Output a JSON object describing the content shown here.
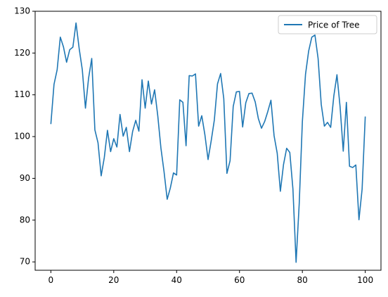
{
  "chart_data": {
    "type": "line",
    "title": "",
    "xlabel": "",
    "ylabel": "",
    "xlim": [
      -5,
      105
    ],
    "ylim": [
      68,
      130
    ],
    "xticks": [
      0,
      20,
      40,
      60,
      80,
      100
    ],
    "yticks": [
      70,
      80,
      90,
      100,
      110,
      120,
      130
    ],
    "grid": false,
    "legend": {
      "placement": "top-right"
    },
    "series": [
      {
        "name": "Price of Tree",
        "color": "#1f77b4",
        "x": [
          0,
          1,
          2,
          3,
          4,
          5,
          6,
          7,
          8,
          9,
          10,
          11,
          12,
          13,
          14,
          15,
          16,
          17,
          18,
          19,
          20,
          21,
          22,
          23,
          24,
          25,
          26,
          27,
          28,
          29,
          30,
          31,
          32,
          33,
          34,
          35,
          36,
          37,
          38,
          39,
          40,
          41,
          42,
          43,
          44,
          45,
          46,
          47,
          48,
          49,
          50,
          51,
          52,
          53,
          54,
          55,
          56,
          57,
          58,
          59,
          60,
          61,
          62,
          63,
          64,
          65,
          66,
          67,
          68,
          69,
          70,
          71,
          72,
          73,
          74,
          75,
          76,
          77,
          78,
          79,
          80,
          81,
          82,
          83,
          84,
          85,
          86,
          87,
          88,
          89,
          90,
          91,
          92,
          93,
          94,
          95,
          96,
          97,
          98,
          99,
          100
        ],
        "values": [
          103.0,
          112.5,
          116.0,
          123.8,
          121.5,
          117.8,
          120.8,
          121.4,
          127.2,
          121.1,
          116.0,
          106.8,
          114.0,
          118.7,
          101.6,
          98.5,
          90.6,
          95.0,
          101.5,
          96.4,
          99.5,
          97.5,
          105.3,
          100.1,
          102.2,
          96.4,
          101.2,
          103.9,
          101.3,
          113.6,
          106.8,
          113.3,
          107.8,
          111.2,
          105.0,
          97.3,
          91.6,
          85.0,
          87.7,
          91.3,
          90.8,
          108.8,
          108.2,
          97.8,
          114.6,
          114.5,
          115.0,
          102.5,
          105.0,
          100.4,
          94.5,
          99.0,
          104.0,
          112.6,
          115.1,
          109.1,
          91.2,
          94.2,
          107.2,
          110.7,
          110.8,
          102.3,
          108.1,
          110.3,
          110.4,
          108.3,
          104.3,
          102.0,
          103.6,
          106.0,
          108.7,
          100.2,
          96.0,
          86.9,
          93.3,
          97.2,
          96.2,
          87.4,
          69.9,
          84.0,
          103.6,
          114.9,
          120.5,
          123.8,
          124.3,
          118.7,
          107.7,
          102.5,
          103.4,
          102.2,
          109.7,
          114.8,
          107.1,
          96.5,
          108.2,
          92.9,
          92.6,
          93.2,
          80.1,
          87.4,
          104.8
        ]
      }
    ]
  }
}
